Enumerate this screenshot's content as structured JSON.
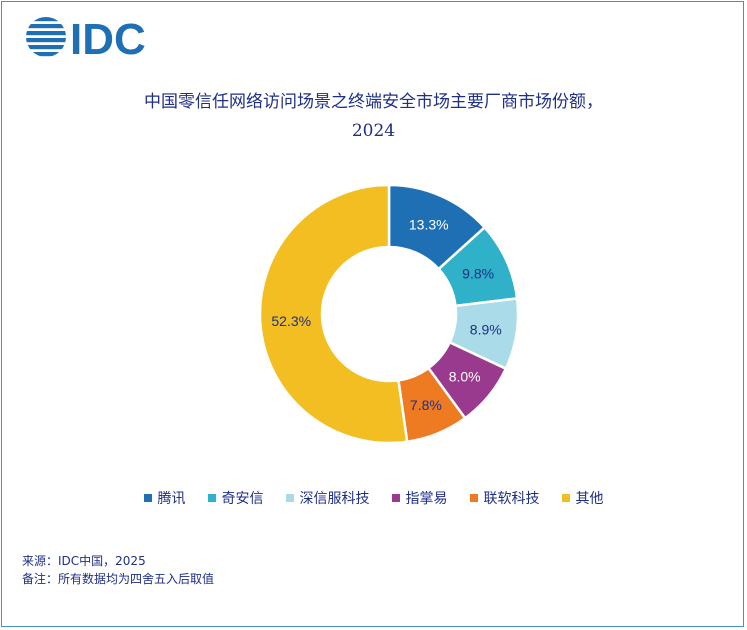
{
  "colors": {
    "brand": "#1f6fb4",
    "title_text": "#1f2f86",
    "border": "#4a90c8"
  },
  "logo": {
    "text": "IDC"
  },
  "chart_data": {
    "type": "pie",
    "donut": true,
    "title": "中国零信任网络访问场景之终端安全市场主要厂商市场份额，",
    "title_line2": "2024",
    "categories": [
      "腾讯",
      "奇安信",
      "深信服科技",
      "指掌易",
      "联软科技",
      "其他"
    ],
    "values": [
      13.3,
      9.8,
      8.9,
      8.0,
      7.8,
      52.3
    ],
    "labels": [
      "13.3%",
      "9.8%",
      "8.9%",
      "8.0%",
      "7.8%",
      "52.3%"
    ],
    "colors": [
      "#1f6fb4",
      "#2fb1c9",
      "#a9dce8",
      "#9a3a8e",
      "#ee7a22",
      "#f2be22"
    ],
    "label_colors": [
      "#ffffff",
      "#1f2f86",
      "#1f2f86",
      "#ffffff",
      "#1f2f86",
      "#1f2f86"
    ],
    "legend_position": "bottom"
  },
  "footer": {
    "source": "来源：IDC中国，2025",
    "note": "备注：所有数据均为四舍五入后取值"
  }
}
